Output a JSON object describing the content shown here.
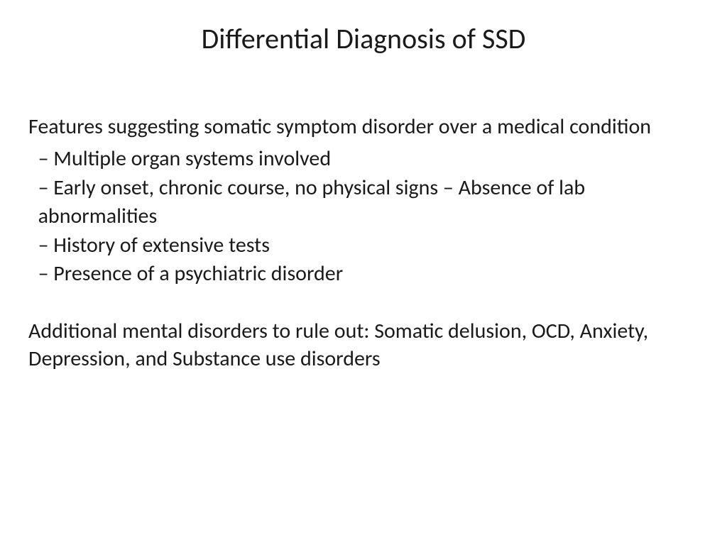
{
  "slide": {
    "title": "Differential Diagnosis of SSD",
    "section_heading": "Features suggesting somatic symptom disorder over a medical condition",
    "bullets": {
      "line1": "  – Multiple organ systems involved",
      "line2": "  – Early onset, chronic course, no physical signs – Absence of lab   abnormalities",
      "line3": "  – History of extensive tests",
      "line4": "  – Presence of a psychiatric disorder"
    },
    "closing": "Additional mental disorders to rule out: Somatic delusion, OCD, Anxiety, Depression, and Substance use disorders"
  },
  "styling": {
    "background_color": "#ffffff",
    "text_color": "#1a1a1a",
    "title_fontsize": 40,
    "body_fontsize": 30,
    "font_family": "Calibri"
  }
}
